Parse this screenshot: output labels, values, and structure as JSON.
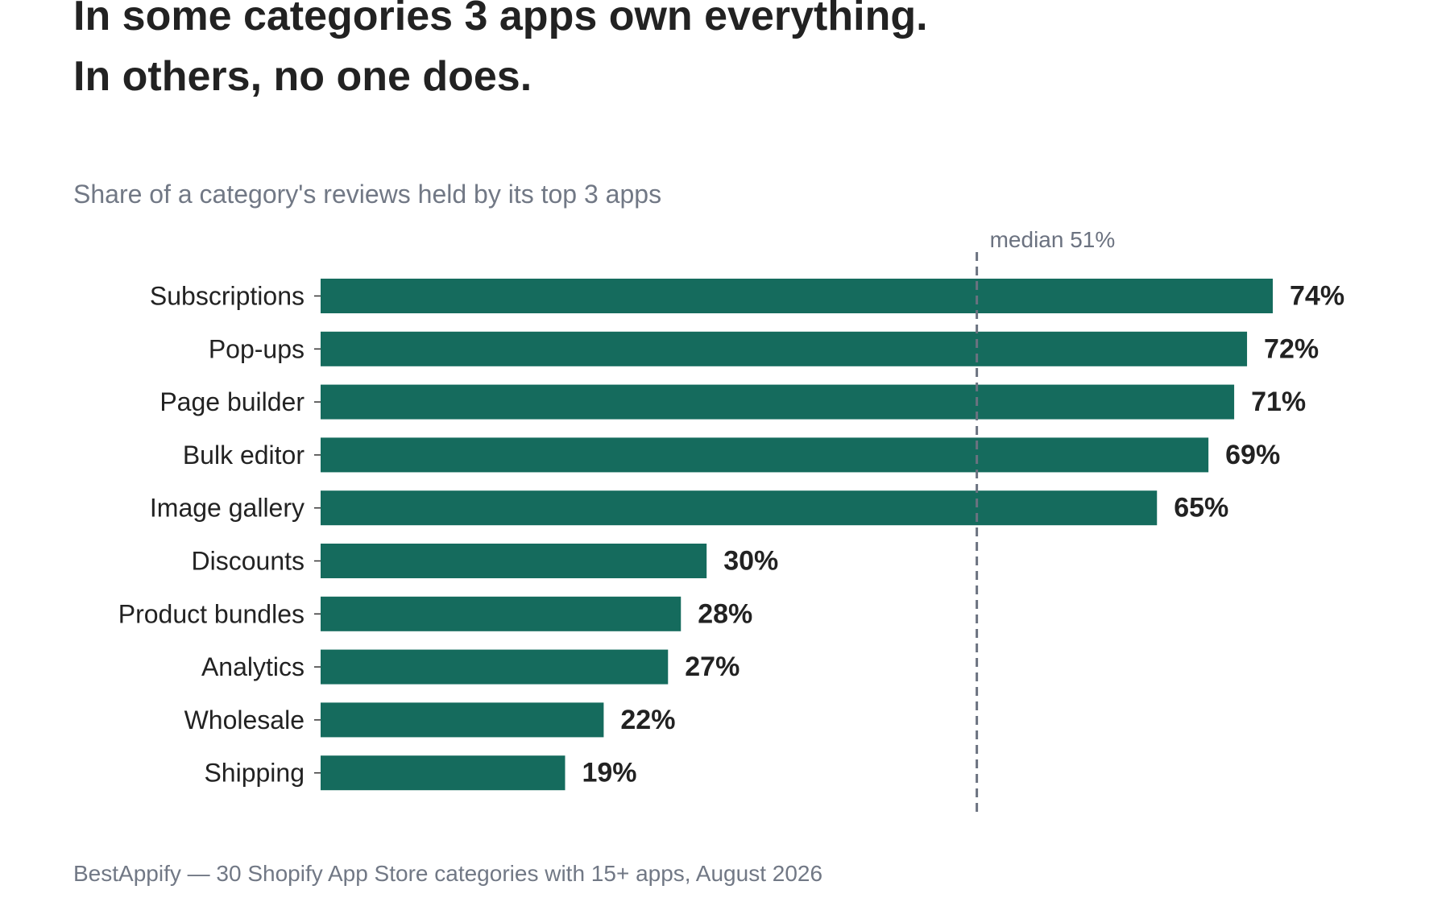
{
  "title_lines": [
    "In some categories 3 apps own everything.",
    "In others, no one does."
  ],
  "subtitle": "Share of a category's reviews held by its top 3 apps",
  "source": "BestAppify — 30 Shopify App Store categories with 15+ apps, August 2026",
  "chart_data": {
    "type": "bar",
    "orientation": "horizontal",
    "categories": [
      "Subscriptions",
      "Pop-ups",
      "Page builder",
      "Bulk editor",
      "Image gallery",
      "Discounts",
      "Product bundles",
      "Analytics",
      "Wholesale",
      "Shipping"
    ],
    "values": [
      74,
      72,
      71,
      69,
      65,
      30,
      28,
      27,
      22,
      19
    ],
    "value_labels": [
      "74%",
      "72%",
      "71%",
      "69%",
      "65%",
      "30%",
      "28%",
      "27%",
      "22%",
      "19%"
    ],
    "xlim": [
      0,
      80
    ],
    "unit": "%",
    "bar_color": "#156b5d",
    "grid": false,
    "reference_line": {
      "value": 51,
      "label": "median 51%",
      "style": "dashed",
      "color": "#6b7280"
    }
  }
}
